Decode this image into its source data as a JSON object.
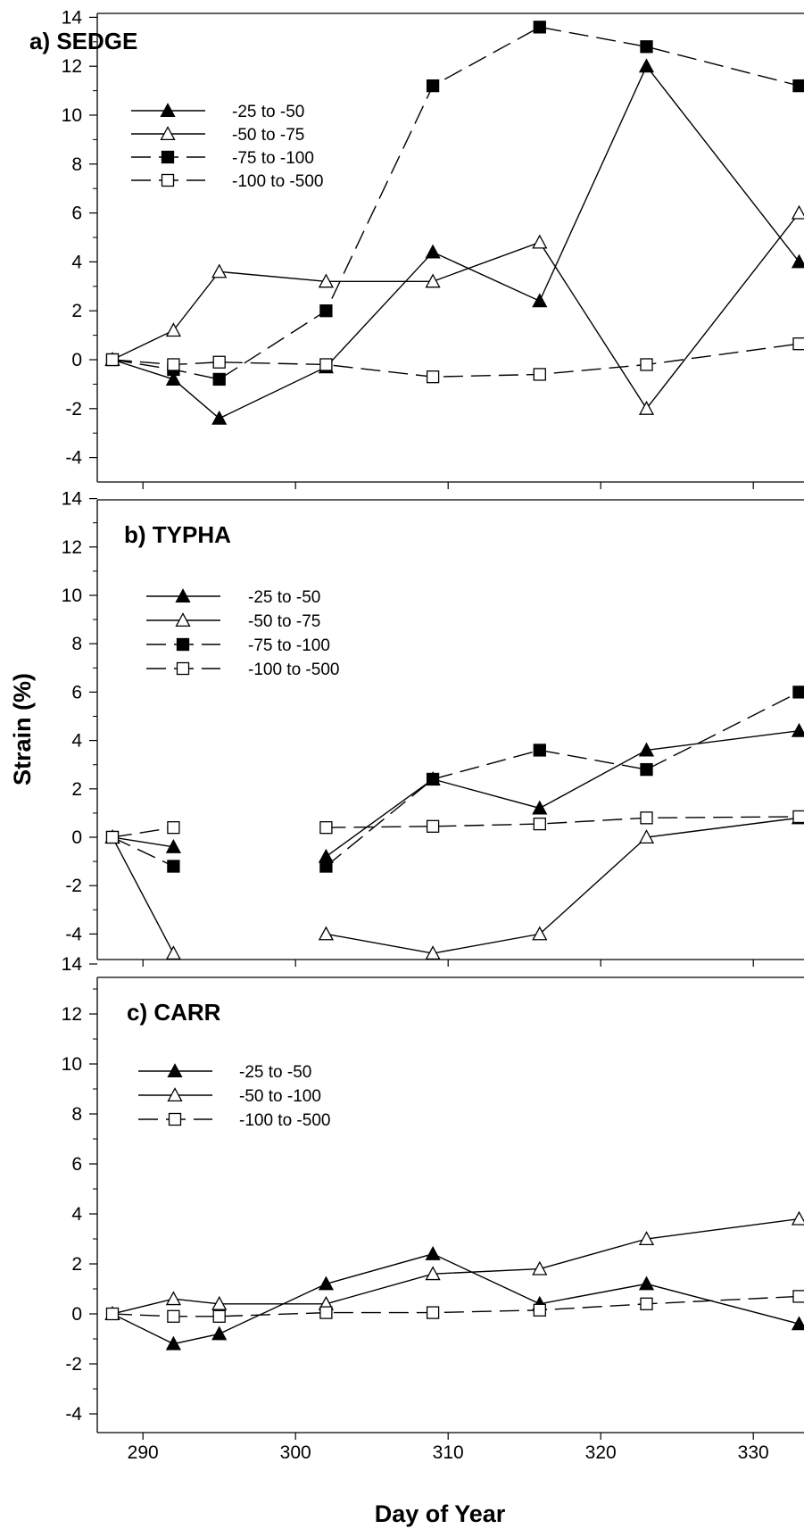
{
  "chart_data": {
    "type": "line",
    "xlabel": "Day of Year",
    "ylabel": "Strain (%)",
    "xlim": [
      287,
      334
    ],
    "xticks": [
      290,
      300,
      310,
      320,
      330
    ],
    "ylim": [
      -5,
      14
    ],
    "yticks": [
      14,
      12,
      10,
      8,
      6,
      4,
      2,
      0,
      -2,
      -4
    ],
    "panels": [
      {
        "id": "sedge",
        "title": "a) SEDGE",
        "series": [
          {
            "name": "-25 to -50",
            "marker": "filled-triangle",
            "dash": "solid",
            "points": [
              [
                288,
                0
              ],
              [
                292,
                -0.8
              ],
              [
                295,
                -2.4
              ],
              [
                302,
                -0.3
              ],
              [
                309,
                4.4
              ],
              [
                316,
                2.4
              ],
              [
                323,
                12.0
              ],
              [
                333,
                4.0
              ]
            ]
          },
          {
            "name": "-50 to -75",
            "marker": "open-triangle",
            "dash": "solid",
            "points": [
              [
                288,
                0
              ],
              [
                292,
                1.2
              ],
              [
                295,
                3.6
              ],
              [
                302,
                3.2
              ],
              [
                309,
                3.2
              ],
              [
                316,
                4.8
              ],
              [
                323,
                -2.0
              ],
              [
                333,
                6.0
              ]
            ]
          },
          {
            "name": "-75 to -100",
            "marker": "filled-square",
            "dash": "dashed",
            "points": [
              [
                288,
                0
              ],
              [
                292,
                -0.4
              ],
              [
                295,
                -0.8
              ],
              [
                302,
                2.0
              ],
              [
                309,
                11.2
              ],
              [
                316,
                13.6
              ],
              [
                323,
                12.8
              ],
              [
                333,
                11.2
              ]
            ]
          },
          {
            "name": "-100 to -500",
            "marker": "open-square",
            "dash": "dashed",
            "points": [
              [
                288,
                0
              ],
              [
                292,
                -0.2
              ],
              [
                295,
                -0.1
              ],
              [
                302,
                -0.2
              ],
              [
                309,
                -0.7
              ],
              [
                316,
                -0.6
              ],
              [
                323,
                -0.2
              ],
              [
                333,
                0.65
              ]
            ]
          }
        ]
      },
      {
        "id": "typha",
        "title": "b) TYPHA",
        "series": [
          {
            "name": "-25 to -50",
            "marker": "filled-triangle",
            "dash": "solid",
            "segments": [
              [
                [
                  288,
                  0
                ],
                [
                  292,
                  -0.4
                ]
              ],
              [
                [
                  302,
                  -0.8
                ],
                [
                  309,
                  2.4
                ],
                [
                  316,
                  1.2
                ],
                [
                  323,
                  3.6
                ],
                [
                  333,
                  4.4
                ]
              ]
            ]
          },
          {
            "name": "-50 to -75",
            "marker": "open-triangle",
            "dash": "solid",
            "segments": [
              [
                [
                  288,
                  0
                ],
                [
                  292,
                  -4.8
                ]
              ],
              [
                [
                  302,
                  -4.0
                ],
                [
                  309,
                  -4.8
                ],
                [
                  316,
                  -4.0
                ],
                [
                  323,
                  0.0
                ],
                [
                  333,
                  0.8
                ]
              ]
            ]
          },
          {
            "name": "-75 to -100",
            "marker": "filled-square",
            "dash": "dashed",
            "segments": [
              [
                [
                  288,
                  0
                ],
                [
                  292,
                  -1.2
                ]
              ],
              [
                [
                  302,
                  -1.2
                ],
                [
                  309,
                  2.4
                ],
                [
                  316,
                  3.6
                ],
                [
                  323,
                  2.8
                ],
                [
                  333,
                  6.0
                ]
              ]
            ]
          },
          {
            "name": "-100 to -500",
            "marker": "open-square",
            "dash": "dashed",
            "segments": [
              [
                [
                  288,
                  0
                ],
                [
                  292,
                  0.4
                ]
              ],
              [
                [
                  302,
                  0.4
                ],
                [
                  309,
                  0.45
                ],
                [
                  316,
                  0.55
                ],
                [
                  323,
                  0.8
                ],
                [
                  333,
                  0.85
                ]
              ]
            ]
          }
        ]
      },
      {
        "id": "carr",
        "title": "c) CARR",
        "series": [
          {
            "name": "-25 to -50",
            "marker": "filled-triangle",
            "dash": "solid",
            "points": [
              [
                288,
                0
              ],
              [
                292,
                -1.2
              ],
              [
                295,
                -0.8
              ],
              [
                302,
                1.2
              ],
              [
                309,
                2.4
              ],
              [
                316,
                0.4
              ],
              [
                323,
                1.2
              ],
              [
                333,
                -0.4
              ]
            ]
          },
          {
            "name": "-50 to -100",
            "marker": "open-triangle",
            "dash": "solid",
            "points": [
              [
                288,
                0
              ],
              [
                292,
                0.6
              ],
              [
                295,
                0.4
              ],
              [
                302,
                0.4
              ],
              [
                309,
                1.6
              ],
              [
                316,
                1.8
              ],
              [
                323,
                3.0
              ],
              [
                333,
                3.8
              ]
            ]
          },
          {
            "name": "-100 to -500",
            "marker": "open-square",
            "dash": "dashed",
            "points": [
              [
                288,
                0
              ],
              [
                292,
                -0.1
              ],
              [
                295,
                -0.1
              ],
              [
                302,
                0.05
              ],
              [
                309,
                0.05
              ],
              [
                316,
                0.15
              ],
              [
                323,
                0.4
              ],
              [
                333,
                0.7
              ]
            ]
          }
        ]
      }
    ]
  }
}
